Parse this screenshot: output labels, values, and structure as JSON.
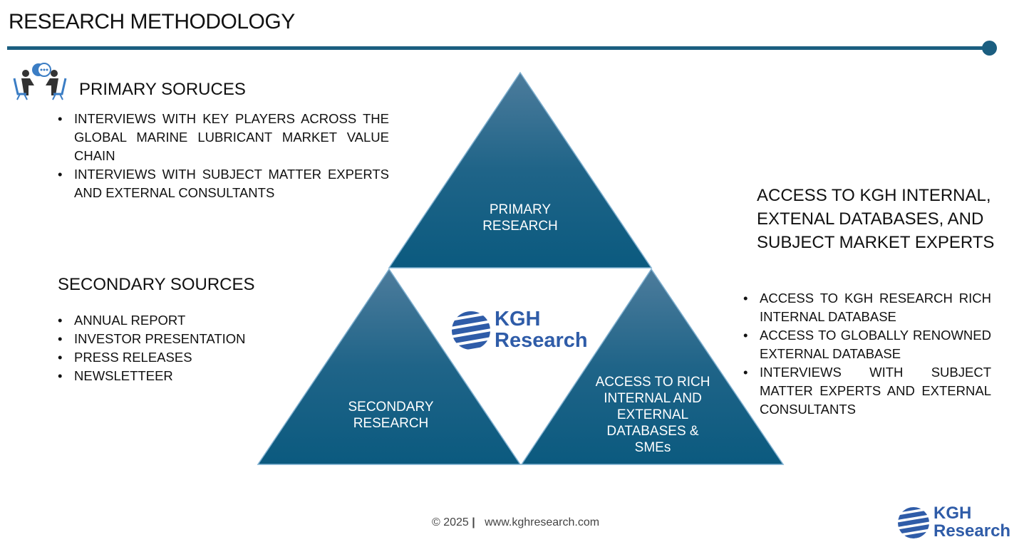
{
  "title": "RESEARCH METHODOLOGY",
  "accent_color": "#1b5e80",
  "primary": {
    "icon": "meeting-icon",
    "heading": "PRIMARY SORUCES",
    "items": [
      "INTERVIEWS WITH KEY PLAYERS ACROSS THE GLOBAL MARINE LUBRICANT MARKET VALUE CHAIN",
      "INTERVIEWS WITH SUBJECT MATTER EXPERTS AND EXTERNAL CONSULTANTS"
    ]
  },
  "secondary": {
    "heading": "SECONDARY SOURCES",
    "items": [
      "ANNUAL REPORT",
      "INVESTOR PRESENTATION",
      "PRESS RELEASES",
      "NEWSLETTEER"
    ]
  },
  "access": {
    "heading": "ACCESS TO KGH INTERNAL, EXTENAL DATABASES, AND SUBJECT MARKET EXPERTS",
    "items": [
      "ACCESS TO KGH RESEARCH RICH INTERNAL DATABASE",
      "ACCESS TO GLOBALLY RENOWNED EXTERNAL DATABASE",
      "INTERVIEWS WITH SUBJECT MATTER EXPERTS AND EXTERNAL CONSULTANTS"
    ]
  },
  "triangles": {
    "top": "PRIMARY RESEARCH",
    "left": "SECONDARY RESEARCH",
    "right": "ACCESS TO RICH INTERNAL AND EXTERNAL DATABASES & SMEs"
  },
  "logo": {
    "line1": "KGH",
    "line2": "Research",
    "color": "#2f5ca8"
  },
  "footer": {
    "copyright": "© 2025",
    "url": "www.kghresearch.com"
  }
}
